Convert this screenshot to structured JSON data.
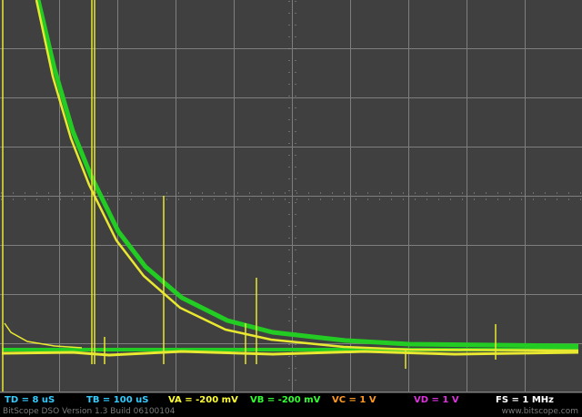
{
  "status": {
    "td": "TD = 8 uS",
    "tb": "TB = 100 uS",
    "va": "VA = -200 mV",
    "vb": "VB = -200 mV",
    "vc": "VC = 1 V",
    "vd": "VD = 1 V",
    "fs": "FS = 1 MHz"
  },
  "footer": {
    "version": "BitScope DSO Version 1.3 Build 06100104",
    "site": "www.bitscope.com"
  }
}
